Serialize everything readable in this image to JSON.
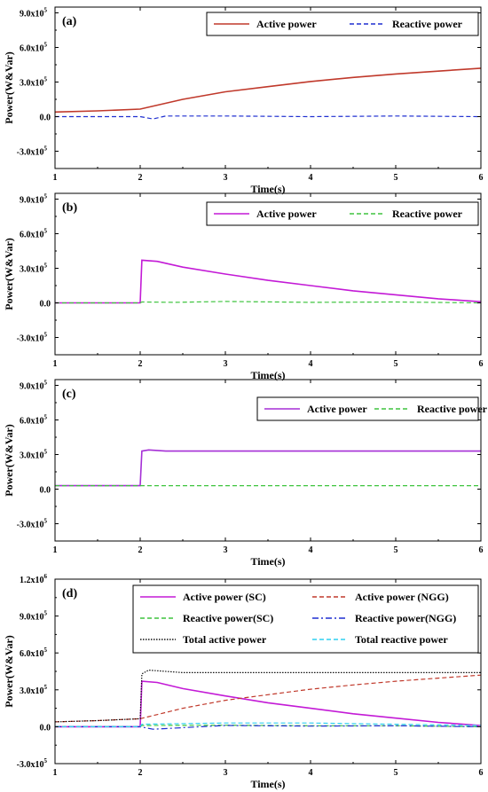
{
  "chart_data": [
    {
      "type": "line",
      "panel_label": "(a)",
      "xlabel": "Time(s)",
      "ylabel": "Power(W&Var)",
      "xlim": [
        1,
        6
      ],
      "ylim": [
        -450000,
        950000
      ],
      "xticks": [
        1,
        2,
        3,
        4,
        5,
        6
      ],
      "xtick_labels": [
        "1",
        "2",
        "3",
        "4",
        "5",
        "6"
      ],
      "yticks": [
        -300000,
        0,
        300000,
        600000,
        900000
      ],
      "ytick_labels": [
        {
          "mant": "-3.0x10",
          "exp": "5"
        },
        {
          "mant": "0.0",
          "exp": ""
        },
        {
          "mant": "3.0x10",
          "exp": "5"
        },
        {
          "mant": "6.0x10",
          "exp": "5"
        },
        {
          "mant": "9.0x10",
          "exp": "5"
        }
      ],
      "legend_position": "top-right",
      "series": [
        {
          "name": "Active power",
          "color": "#c0392b",
          "dash": "solid",
          "x": [
            1,
            1.5,
            2,
            2.5,
            3,
            3.5,
            4,
            4.5,
            5,
            5.5,
            6
          ],
          "y": [
            40000,
            50000,
            65000,
            150000,
            215000,
            260000,
            305000,
            340000,
            370000,
            395000,
            420000
          ]
        },
        {
          "name": "Reactive power",
          "color": "#1f2fd0",
          "dash": "dashed",
          "x": [
            1,
            2,
            2.15,
            2.3,
            3,
            4,
            5,
            6
          ],
          "y": [
            0,
            0,
            -20000,
            5000,
            5000,
            0,
            5000,
            0
          ]
        }
      ]
    },
    {
      "type": "line",
      "panel_label": "(b)",
      "xlabel": "Time(s)",
      "ylabel": "Power(W&Var)",
      "xlim": [
        1,
        6
      ],
      "ylim": [
        -450000,
        950000
      ],
      "xticks": [
        1,
        2,
        3,
        4,
        5,
        6
      ],
      "xtick_labels": [
        "1",
        "2",
        "3",
        "4",
        "5",
        "6"
      ],
      "yticks": [
        -300000,
        0,
        300000,
        600000,
        900000
      ],
      "ytick_labels": [
        {
          "mant": "-3.0x10",
          "exp": "5"
        },
        {
          "mant": "0.0",
          "exp": ""
        },
        {
          "mant": "3.0x10",
          "exp": "5"
        },
        {
          "mant": "6.0x10",
          "exp": "5"
        },
        {
          "mant": "9.0x10",
          "exp": "5"
        }
      ],
      "legend_position": "top-right",
      "series": [
        {
          "name": "Active power",
          "color": "#c31ad6",
          "dash": "solid",
          "x": [
            1,
            2,
            2.02,
            2.2,
            2.5,
            3,
            3.5,
            4,
            4.5,
            5,
            5.5,
            6
          ],
          "y": [
            0,
            0,
            370000,
            360000,
            310000,
            250000,
            195000,
            150000,
            105000,
            70000,
            35000,
            10000
          ]
        },
        {
          "name": "Reactive power",
          "color": "#3ec43e",
          "dash": "dashed",
          "x": [
            1,
            2,
            2.02,
            2.4,
            3,
            4,
            5,
            6
          ],
          "y": [
            0,
            0,
            8000,
            5000,
            12000,
            5000,
            8000,
            0
          ]
        }
      ]
    },
    {
      "type": "line",
      "panel_label": "(c)",
      "xlabel": "Time(s)",
      "ylabel": "Power(W&Var)",
      "xlim": [
        1,
        6
      ],
      "ylim": [
        -450000,
        950000
      ],
      "xticks": [
        1,
        2,
        3,
        4,
        5,
        6
      ],
      "xtick_labels": [
        "1",
        "2",
        "3",
        "4",
        "5",
        "6"
      ],
      "yticks": [
        -300000,
        0,
        300000,
        600000,
        900000
      ],
      "ytick_labels": [
        {
          "mant": "-3.0x10",
          "exp": "5"
        },
        {
          "mant": "0.0",
          "exp": ""
        },
        {
          "mant": "3.0x10",
          "exp": "5"
        },
        {
          "mant": "6.0x10",
          "exp": "5"
        },
        {
          "mant": "9.0x10",
          "exp": "5"
        }
      ],
      "legend_position": "top-right",
      "series": [
        {
          "name": "Active power",
          "color": "#a52fd6",
          "dash": "solid",
          "x": [
            1,
            2,
            2.02,
            2.1,
            2.3,
            3,
            4,
            5,
            6
          ],
          "y": [
            30000,
            30000,
            330000,
            340000,
            330000,
            330000,
            330000,
            330000,
            330000
          ]
        },
        {
          "name": "Reactive power",
          "color": "#3ec43e",
          "dash": "dashed",
          "x": [
            1,
            2,
            6
          ],
          "y": [
            30000,
            30000,
            30000
          ]
        }
      ]
    },
    {
      "type": "line",
      "panel_label": "(d)",
      "xlabel": "Time(s)",
      "ylabel": "Power(W&Var)",
      "xlim": [
        1,
        6
      ],
      "ylim": [
        -300000,
        1200000
      ],
      "xticks": [
        1,
        2,
        3,
        4,
        5,
        6
      ],
      "xtick_labels": [
        "1",
        "2",
        "3",
        "4",
        "5",
        "6"
      ],
      "yticks": [
        -300000,
        0,
        300000,
        600000,
        900000,
        1200000
      ],
      "ytick_labels": [
        {
          "mant": "-3.0x10",
          "exp": "5"
        },
        {
          "mant": "0.0",
          "exp": ""
        },
        {
          "mant": "3.0x10",
          "exp": "5"
        },
        {
          "mant": "6.0x10",
          "exp": "5"
        },
        {
          "mant": "9.0x10",
          "exp": "5"
        },
        {
          "mant": "1.2x10",
          "exp": "6"
        }
      ],
      "legend_position": "top-right",
      "series": [
        {
          "name": "Active power (SC)",
          "color": "#c31ad6",
          "dash": "solid",
          "x": [
            1,
            2,
            2.02,
            2.2,
            2.5,
            3,
            3.5,
            4,
            4.5,
            5,
            5.5,
            6
          ],
          "y": [
            0,
            0,
            370000,
            360000,
            310000,
            250000,
            195000,
            150000,
            105000,
            70000,
            35000,
            10000
          ]
        },
        {
          "name": "Active power (NGG)",
          "color": "#c0392b",
          "dash": "dashed",
          "x": [
            1,
            1.5,
            2,
            2.5,
            3,
            3.5,
            4,
            4.5,
            5,
            5.5,
            6
          ],
          "y": [
            40000,
            50000,
            65000,
            150000,
            215000,
            260000,
            305000,
            340000,
            370000,
            395000,
            420000
          ]
        },
        {
          "name": "Reactive power(SC)",
          "color": "#3ec43e",
          "dash": "dashed",
          "x": [
            1,
            2,
            2.02,
            3,
            4,
            5,
            6
          ],
          "y": [
            0,
            0,
            10000,
            12000,
            8000,
            8000,
            0
          ]
        },
        {
          "name": "Reactive power(NGG)",
          "color": "#1f2fd0",
          "dash": "dashdot",
          "x": [
            1,
            2,
            2.15,
            3,
            4,
            5,
            6
          ],
          "y": [
            0,
            0,
            -20000,
            10000,
            5000,
            8000,
            0
          ]
        },
        {
          "name": "Total active power",
          "color": "#111111",
          "dash": "dotted",
          "x": [
            1,
            1.5,
            2,
            2.02,
            2.1,
            2.5,
            3,
            3.5,
            4,
            4.5,
            5,
            5.5,
            6
          ],
          "y": [
            40000,
            50000,
            65000,
            430000,
            460000,
            440000,
            440000,
            440000,
            440000,
            440000,
            440000,
            440000,
            440000
          ]
        },
        {
          "name": "Total reactive power",
          "color": "#2ed0f0",
          "dash": "dashed",
          "x": [
            1,
            2,
            2.02,
            3,
            4,
            5,
            6
          ],
          "y": [
            0,
            0,
            20000,
            30000,
            30000,
            20000,
            10000
          ]
        }
      ]
    }
  ]
}
